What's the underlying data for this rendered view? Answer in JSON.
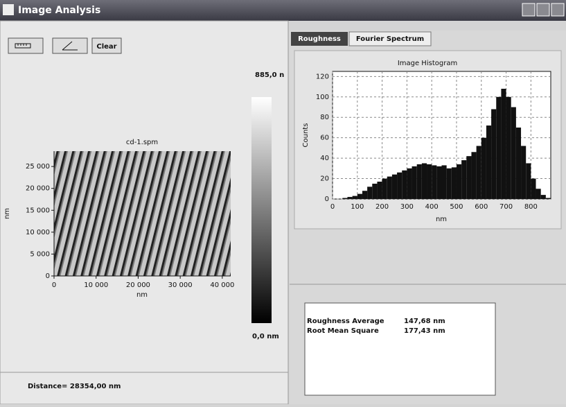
{
  "window": {
    "title": "Image Analysis"
  },
  "toolbar": {
    "clear_button": "Clear"
  },
  "image_panel": {
    "title": "cd-1.spm",
    "xlabel": "nm",
    "ylabel": "nm",
    "xlim": [
      0,
      42000
    ],
    "ylim": [
      0,
      28500
    ],
    "xticks": [
      0,
      {
        "value": 10000,
        "label": "10 000"
      },
      {
        "value": 20000,
        "label": "20 000"
      },
      {
        "value": 30000,
        "label": "30 000"
      },
      {
        "value": 40000,
        "label": "40 000"
      }
    ],
    "yticks": [
      0,
      {
        "value": 5000,
        "label": "5 000"
      },
      {
        "value": 10000,
        "label": "10 000"
      },
      {
        "value": 15000,
        "label": "15 000"
      },
      {
        "value": 20000,
        "label": "20 000"
      },
      {
        "value": 25000,
        "label": "25 000"
      }
    ],
    "colorbar_max": "885,0 n",
    "colorbar_min": "0,0 nm"
  },
  "status": {
    "distance": "Distance= 28354,00 nm"
  },
  "tabs": [
    "Roughness",
    "Fourier Spectrum"
  ],
  "chart_data": {
    "type": "histogram",
    "title": "Image Histogram",
    "xlabel": "nm",
    "ylabel": "Counts",
    "color": "#111111",
    "bins": [
      0,
      20,
      40,
      60,
      80,
      100,
      120,
      140,
      160,
      180,
      200,
      220,
      240,
      260,
      280,
      300,
      320,
      340,
      360,
      380,
      400,
      420,
      440,
      460,
      480,
      500,
      520,
      540,
      560,
      580,
      600,
      620,
      640,
      660,
      680,
      700,
      720,
      740,
      760,
      780,
      800,
      820,
      840,
      860,
      880
    ],
    "counts": [
      0,
      0,
      1,
      2,
      3,
      5,
      8,
      12,
      15,
      17,
      20,
      22,
      24,
      26,
      28,
      30,
      32,
      34,
      35,
      34,
      33,
      32,
      33,
      30,
      31,
      34,
      38,
      42,
      46,
      52,
      60,
      72,
      88,
      100,
      108,
      100,
      90,
      70,
      52,
      35,
      20,
      10,
      4,
      1
    ],
    "xlim": [
      0,
      880
    ],
    "ylim": [
      0,
      125
    ],
    "xticks": [
      0,
      100,
      200,
      300,
      400,
      500,
      600,
      700,
      800
    ],
    "yticks": [
      0,
      20,
      40,
      60,
      80,
      100,
      120
    ],
    "grid": true
  },
  "stats": {
    "rows": [
      {
        "label": "Roughness Average",
        "value": "147,68 nm"
      },
      {
        "label": "Root Mean Square",
        "value": "177,43 nm"
      }
    ]
  }
}
